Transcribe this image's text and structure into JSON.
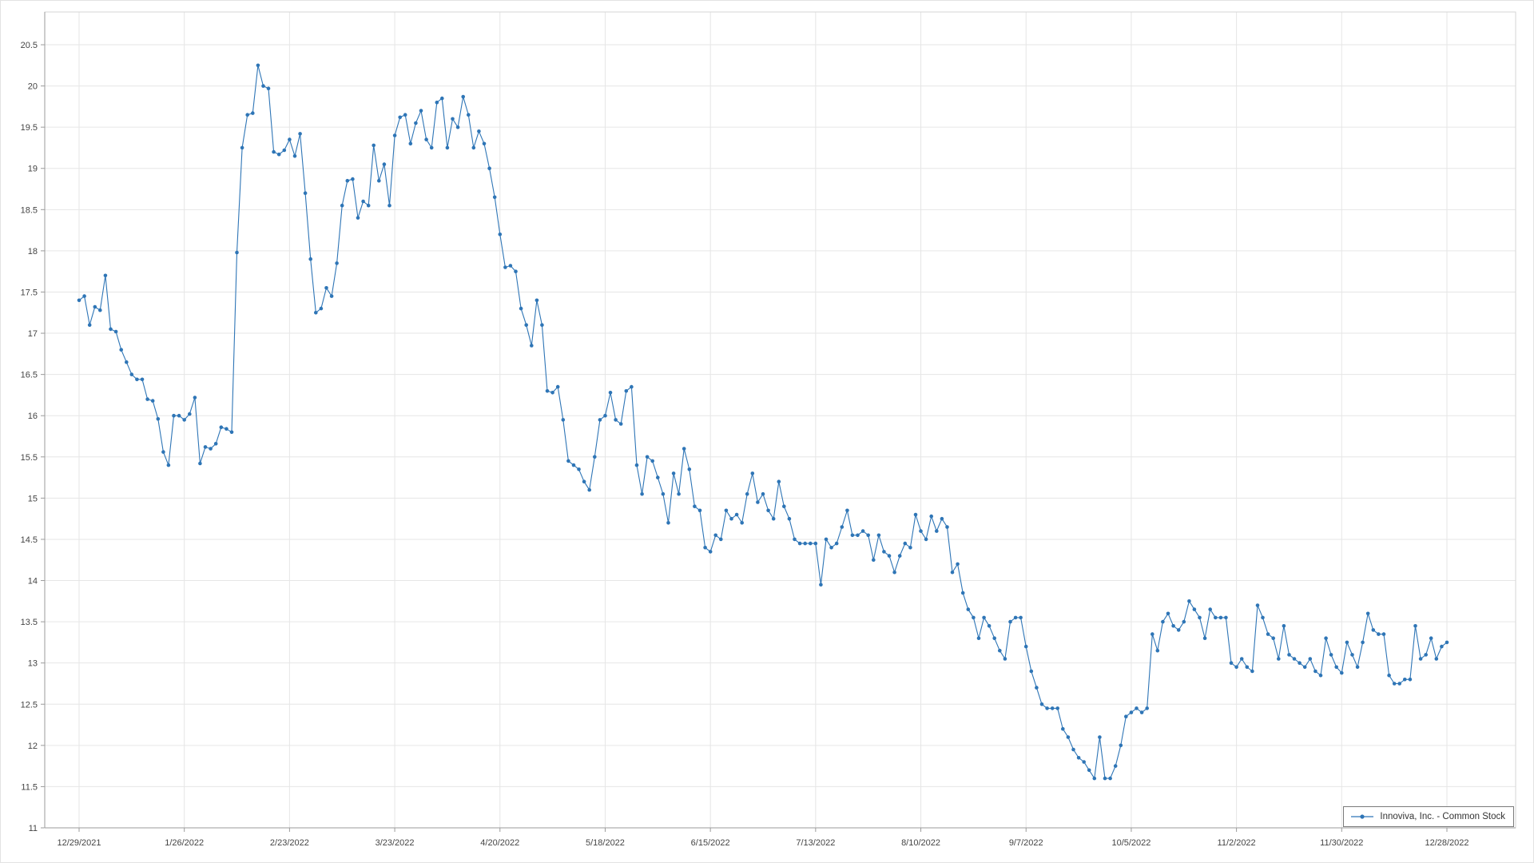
{
  "chart_data": {
    "type": "line",
    "title": "",
    "series": [
      {
        "name": "Innoviva, Inc. - Common Stock",
        "color": "#2e75b6",
        "values": [
          17.4,
          17.45,
          17.1,
          17.32,
          17.28,
          17.7,
          17.05,
          17.02,
          16.8,
          16.65,
          16.5,
          16.44,
          16.44,
          16.2,
          16.18,
          15.96,
          15.56,
          15.4,
          16.0,
          16.0,
          15.95,
          16.02,
          16.22,
          15.42,
          15.62,
          15.6,
          15.66,
          15.86,
          15.84,
          15.8,
          17.98,
          19.25,
          19.65,
          19.67,
          20.25,
          20.0,
          19.97,
          19.2,
          19.17,
          19.22,
          19.35,
          19.15,
          19.42,
          18.7,
          17.9,
          17.25,
          17.3,
          17.55,
          17.45,
          17.85,
          18.55,
          18.85,
          18.87,
          18.4,
          18.6,
          18.55,
          19.28,
          18.85,
          19.05,
          18.55,
          19.4,
          19.62,
          19.65,
          19.3,
          19.55,
          19.7,
          19.35,
          19.25,
          19.8,
          19.85,
          19.25,
          19.6,
          19.5,
          19.87,
          19.65,
          19.25,
          19.45,
          19.3,
          19.0,
          18.65,
          18.2,
          17.8,
          17.82,
          17.75,
          17.3,
          17.1,
          16.85,
          17.4,
          17.1,
          16.3,
          16.28,
          16.35,
          15.95,
          15.45,
          15.4,
          15.35,
          15.2,
          15.1,
          15.5,
          15.95,
          16.0,
          16.28,
          15.95,
          15.9,
          16.3,
          16.35,
          15.4,
          15.05,
          15.5,
          15.45,
          15.25,
          15.05,
          14.7,
          15.3,
          15.05,
          15.6,
          15.35,
          14.9,
          14.85,
          14.4,
          14.35,
          14.55,
          14.5,
          14.85,
          14.75,
          14.8,
          14.7,
          15.05,
          15.3,
          14.95,
          15.05,
          14.85,
          14.75,
          15.2,
          14.9,
          14.75,
          14.5,
          14.45,
          14.45,
          14.45,
          14.45,
          13.95,
          14.5,
          14.4,
          14.45,
          14.65,
          14.85,
          14.55,
          14.55,
          14.6,
          14.55,
          14.25,
          14.55,
          14.35,
          14.3,
          14.1,
          14.3,
          14.45,
          14.4,
          14.8,
          14.6,
          14.5,
          14.78,
          14.6,
          14.75,
          14.65,
          14.1,
          14.2,
          13.85,
          13.65,
          13.55,
          13.3,
          13.55,
          13.45,
          13.3,
          13.15,
          13.05,
          13.5,
          13.55,
          13.55,
          13.2,
          12.9,
          12.7,
          12.5,
          12.45,
          12.45,
          12.45,
          12.2,
          12.1,
          11.95,
          11.85,
          11.8,
          11.7,
          11.6,
          12.1,
          11.6,
          11.6,
          11.75,
          12.0,
          12.35,
          12.4,
          12.45,
          12.4,
          12.45,
          13.35,
          13.15,
          13.5,
          13.6,
          13.45,
          13.4,
          13.5,
          13.75,
          13.65,
          13.55,
          13.3,
          13.65,
          13.55,
          13.55,
          13.55,
          13.0,
          12.95,
          13.05,
          12.95,
          12.9,
          13.7,
          13.55,
          13.35,
          13.3,
          13.05,
          13.45,
          13.1,
          13.05,
          13.0,
          12.95,
          13.05,
          12.9,
          12.85,
          13.3,
          13.1,
          12.95,
          12.88,
          13.25,
          13.1,
          12.95,
          13.25,
          13.6,
          13.4,
          13.35,
          13.35,
          12.85,
          12.75,
          12.75,
          12.8,
          12.8,
          13.45,
          13.05,
          13.1,
          13.3,
          13.05,
          13.2,
          13.25
        ]
      }
    ],
    "x_tick_labels": [
      "12/29/2021",
      "1/26/2022",
      "2/23/2022",
      "3/23/2022",
      "4/20/2022",
      "5/18/2022",
      "6/15/2022",
      "7/13/2022",
      "8/10/2022",
      "9/7/2022",
      "10/5/2022",
      "11/2/2022",
      "11/30/2022",
      "12/28/2022"
    ],
    "points_per_tick": 20,
    "ylim": [
      11,
      20.5
    ],
    "y_tick_step": 0.5,
    "grid": true,
    "legend": {
      "position": "bottom-right",
      "label": "Innoviva, Inc. - Common Stock"
    }
  },
  "colors": {
    "line": "#2e75b6",
    "grid": "#e6e6e6",
    "axis": "#9b9b9b",
    "plot_border": "#d6d6d6",
    "text": "#444444",
    "legend_border": "#7a7a7a",
    "background": "#ffffff"
  }
}
